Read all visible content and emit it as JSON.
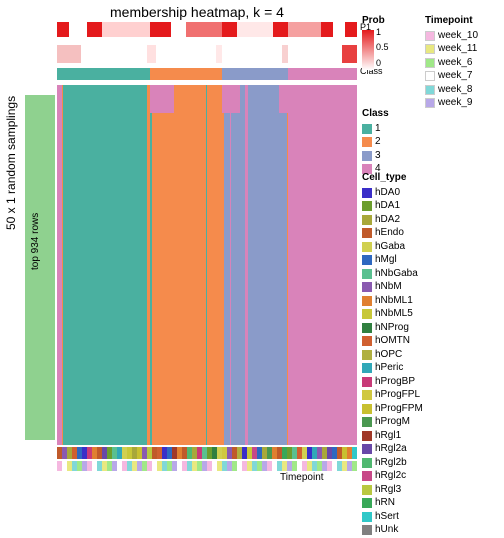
{
  "title": "membership heatmap, k = 4",
  "ylabel": "50 x 1 random samplings",
  "row_anno_label": "top 934 rows",
  "row_anno_color": "#8fd18f",
  "xaxis_label": "Timepoint",
  "anno_labels": {
    "prob": "Prob",
    "class": "Class",
    "celltype": "Cell_type",
    "timepoint": "Timepoint"
  },
  "class_colors": {
    "1": "#4ab0a0",
    "2": "#f58b4c",
    "3": "#8a9bc9",
    "4": "#d983ba"
  },
  "class_widths": [
    0.31,
    0.24,
    0.22,
    0.23
  ],
  "prob_gradient": {
    "low": "#ffffff",
    "high": "#e41a1c",
    "ticks": [
      "1",
      "0.5",
      "0"
    ]
  },
  "prob_top_segments": [
    {
      "c": "#e41a1c",
      "w": 0.04
    },
    {
      "c": "#ffffff",
      "w": 0.06
    },
    {
      "c": "#e41a1c",
      "w": 0.05
    },
    {
      "c": "#ffd0d0",
      "w": 0.16
    },
    {
      "c": "#e41a1c",
      "w": 0.07
    },
    {
      "c": "#ffffff",
      "w": 0.05
    },
    {
      "c": "#f07070",
      "w": 0.12
    },
    {
      "c": "#e41a1c",
      "w": 0.05
    },
    {
      "c": "#ffe8e8",
      "w": 0.12
    },
    {
      "c": "#e41a1c",
      "w": 0.05
    },
    {
      "c": "#f5a0a0",
      "w": 0.11
    },
    {
      "c": "#e41a1c",
      "w": 0.04
    },
    {
      "c": "#ffffff",
      "w": 0.04
    },
    {
      "c": "#e41a1c",
      "w": 0.04
    }
  ],
  "prob2_segments": [
    {
      "c": "#f5c0c0",
      "w": 0.08
    },
    {
      "c": "#ffffff",
      "w": 0.22
    },
    {
      "c": "#ffe0e0",
      "w": 0.03
    },
    {
      "c": "#ffffff",
      "w": 0.2
    },
    {
      "c": "#ffe8e8",
      "w": 0.02
    },
    {
      "c": "#ffffff",
      "w": 0.2
    },
    {
      "c": "#f8d0d0",
      "w": 0.02
    },
    {
      "c": "#ffffff",
      "w": 0.18
    },
    {
      "c": "#e84040",
      "w": 0.05
    }
  ],
  "main_columns": [
    {
      "w": 0.015,
      "c": "#d983ba"
    },
    {
      "w": 0.005,
      "c": "#f58b4c"
    },
    {
      "w": 0.28,
      "c": "#4ab0a0"
    },
    {
      "w": 0.01,
      "c": "#f58b4c"
    },
    {
      "w": 0.005,
      "c": "#4ab0a0"
    },
    {
      "w": 0.01,
      "c": "#f58b4c"
    },
    {
      "w": 0.17,
      "c": "#f58b4c"
    },
    {
      "w": 0.005,
      "c": "#4ab0a0"
    },
    {
      "w": 0.055,
      "c": "#f58b4c"
    },
    {
      "w": 0.02,
      "c": "#8a9bc9"
    },
    {
      "w": 0.005,
      "c": "#d983ba"
    },
    {
      "w": 0.045,
      "c": "#8a9bc9"
    },
    {
      "w": 0.01,
      "c": "#d983ba"
    },
    {
      "w": 0.13,
      "c": "#8a9bc9"
    },
    {
      "w": 0.005,
      "c": "#f58b4c"
    },
    {
      "w": 0.23,
      "c": "#d983ba"
    }
  ],
  "top_pink_overlay": [
    {
      "l": 0.31,
      "w": 0.08,
      "c": "#d983ba"
    },
    {
      "l": 0.55,
      "w": 0.06,
      "c": "#d983ba"
    },
    {
      "l": 0.74,
      "w": 0.03,
      "c": "#d983ba"
    }
  ],
  "cell_types": [
    {
      "name": "hDA0",
      "color": "#3a2ec8"
    },
    {
      "name": "hDA1",
      "color": "#6c9e2e"
    },
    {
      "name": "hDA2",
      "color": "#a8a83a"
    },
    {
      "name": "hEndo",
      "color": "#c05a2a"
    },
    {
      "name": "hGaba",
      "color": "#d0d050"
    },
    {
      "name": "hMgl",
      "color": "#2e68c0"
    },
    {
      "name": "hNbGaba",
      "color": "#5ac090"
    },
    {
      "name": "hNbM",
      "color": "#8a5ab0"
    },
    {
      "name": "hNbML1",
      "color": "#e08030"
    },
    {
      "name": "hNbML5",
      "color": "#c8c838"
    },
    {
      "name": "hNProg",
      "color": "#308040"
    },
    {
      "name": "hOMTN",
      "color": "#d06030"
    },
    {
      "name": "hOPC",
      "color": "#b0b040"
    },
    {
      "name": "hPeric",
      "color": "#30a8b8"
    },
    {
      "name": "hProgBP",
      "color": "#c83a78"
    },
    {
      "name": "hProgFPL",
      "color": "#d0c840"
    },
    {
      "name": "hProgFPM",
      "color": "#c8c030"
    },
    {
      "name": "hProgM",
      "color": "#4a9850"
    },
    {
      "name": "hRgl1",
      "color": "#a03828"
    },
    {
      "name": "hRgl2a",
      "color": "#6848a8"
    },
    {
      "name": "hRgl2b",
      "color": "#50b870"
    },
    {
      "name": "hRgl2c",
      "color": "#c84888"
    },
    {
      "name": "hRgl3",
      "color": "#b8c840"
    },
    {
      "name": "hRN",
      "color": "#38a858"
    },
    {
      "name": "hSert",
      "color": "#30c8c8"
    },
    {
      "name": "hUnk",
      "color": "#808080"
    }
  ],
  "timepoints": [
    {
      "name": "week_10",
      "color": "#f5b8e0"
    },
    {
      "name": "week_11",
      "color": "#e8e880"
    },
    {
      "name": "week_6",
      "color": "#a0e888"
    },
    {
      "name": "week_7",
      "color": "#ffffff"
    },
    {
      "name": "week_8",
      "color": "#80d8d8"
    },
    {
      "name": "week_9",
      "color": "#b8a8e8"
    }
  ],
  "legends": {
    "prob": "Prob",
    "class": "Class",
    "celltype": "Cell_type",
    "timepoint": "Timepoint"
  },
  "celltype_bar_pattern": [
    3,
    7,
    2,
    11,
    5,
    0,
    14,
    8,
    3,
    19,
    1,
    6,
    13,
    4,
    9,
    2,
    16,
    7,
    22,
    3,
    11,
    0,
    5,
    18,
    8,
    3,
    20,
    2,
    14,
    6,
    1,
    10,
    4,
    15,
    7,
    3,
    12,
    0,
    9,
    21,
    5,
    2,
    17,
    8,
    3,
    23,
    1,
    6,
    11,
    4,
    0,
    13,
    7,
    2,
    19,
    5,
    3,
    16,
    8,
    24
  ],
  "timepoint_bar_pattern": [
    0,
    3,
    1,
    4,
    2,
    5,
    0,
    3,
    4,
    1,
    2,
    5,
    3,
    0,
    4,
    1,
    5,
    2,
    0,
    3,
    1,
    4,
    2,
    5,
    3,
    0,
    4,
    1,
    2,
    5,
    0,
    3,
    1,
    4,
    5,
    2,
    3,
    0,
    1,
    4,
    2,
    5,
    0,
    3,
    4,
    1,
    5,
    2,
    3,
    0,
    1,
    4,
    2,
    5,
    0,
    3,
    4,
    1,
    5,
    2
  ]
}
